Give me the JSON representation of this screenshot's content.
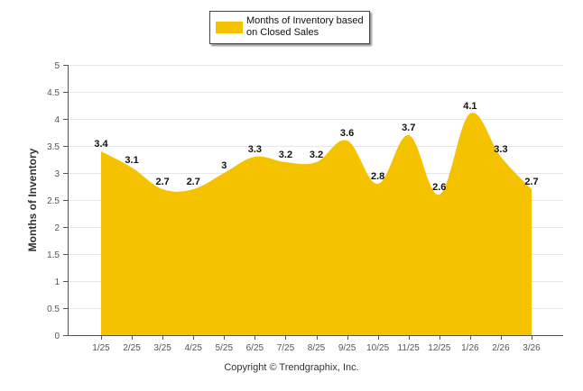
{
  "legend": {
    "label": "Months of Inventory based on Closed Sales"
  },
  "footer": {
    "copyright": "Copyright © Trendgraphix, Inc."
  },
  "colors": {
    "series": "#F5C200",
    "grid": "#e6e6e6",
    "axis": "#555555"
  },
  "chart_data": {
    "type": "area",
    "title": "",
    "xlabel": "",
    "ylabel": "Months of Inventory",
    "ylim": [
      0,
      5
    ],
    "yticks": [
      0,
      0.5,
      1,
      1.5,
      2,
      2.5,
      3,
      3.5,
      4,
      4.5,
      5
    ],
    "ytick_labels": [
      "0",
      "0.5",
      "1",
      "1.5",
      "2",
      "2.5",
      "3",
      "3.5",
      "4",
      "4.5",
      "5"
    ],
    "grid": true,
    "legend_position": "top-center",
    "categories": [
      "1/25",
      "2/25",
      "3/25",
      "4/25",
      "5/25",
      "6/25",
      "7/25",
      "8/25",
      "9/25",
      "10/25",
      "11/25",
      "12/25",
      "1/26",
      "2/26",
      "3/26"
    ],
    "series": [
      {
        "name": "Months of Inventory based on Closed Sales",
        "values": [
          3.4,
          3.1,
          2.7,
          2.7,
          3,
          3.3,
          3.2,
          3.2,
          3.6,
          2.8,
          3.7,
          2.6,
          4.1,
          3.3,
          2.7
        ],
        "labels": [
          "3.4",
          "3.1",
          "2.7",
          "2.7",
          "3",
          "3.3",
          "3.2",
          "3.2",
          "3.6",
          "2.8",
          "3.7",
          "2.6",
          "4.1",
          "3.3",
          "2.7"
        ]
      }
    ]
  }
}
